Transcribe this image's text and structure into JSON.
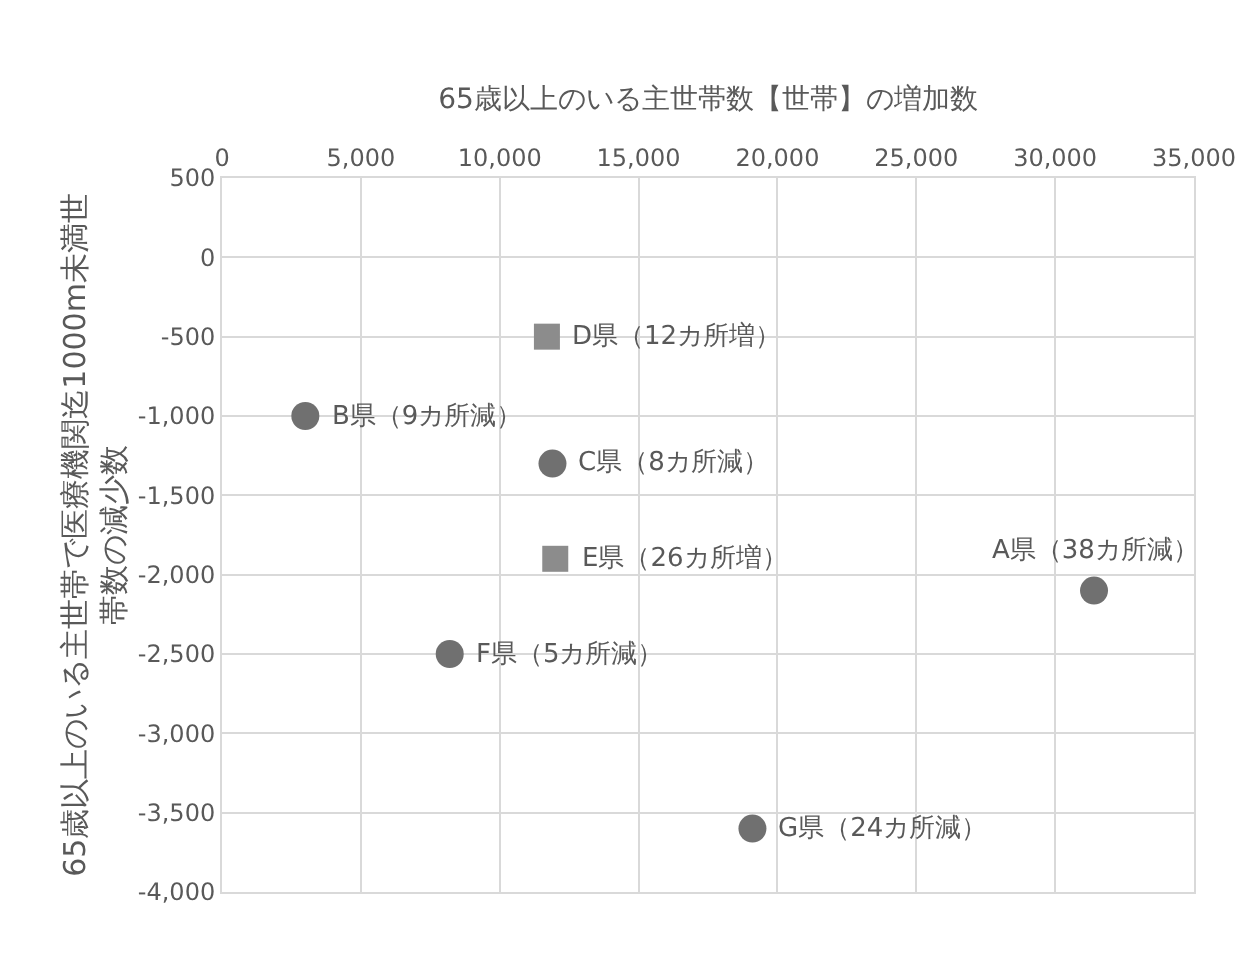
{
  "chart_data": {
    "type": "scatter",
    "xlabel": "65歳以上のいる主世帯数【世帯】の増加数",
    "ylabel": "65歳以上のいる主世帯で医療機関迄1000m未満世帯数の減少数",
    "xlim": [
      0,
      35000
    ],
    "xticks": [
      0,
      {
        "value": 5000,
        "label": "5,000"
      },
      {
        "value": 10000,
        "label": "10,000"
      },
      {
        "value": 15000,
        "label": "15,000"
      },
      {
        "value": 20000,
        "label": "20,000"
      },
      {
        "value": 25000,
        "label": "25,000"
      },
      {
        "value": 30000,
        "label": "30,000"
      },
      {
        "value": 35000,
        "label": "35,000"
      }
    ],
    "ylim": [
      -4000,
      500
    ],
    "yticks": [
      500,
      0,
      -500,
      {
        "value": -1000,
        "label": "-1,000"
      },
      {
        "value": -1500,
        "label": "-1,500"
      },
      {
        "value": -2000,
        "label": "-2,000"
      },
      {
        "value": -2500,
        "label": "-2,500"
      },
      {
        "value": -3000,
        "label": "-3,000"
      },
      {
        "value": -3500,
        "label": "-3,500"
      },
      {
        "value": -4000,
        "label": "-4,000"
      }
    ],
    "series": [
      {
        "color": "#707070",
        "marker": "circle",
        "x": [
          31400,
          3000,
          11900,
          8200,
          19100
        ],
        "values": [
          -2100,
          -1000,
          -1300,
          -2500,
          -3600
        ]
      },
      {
        "color": "#8c8c8c",
        "marker": "square",
        "x": [
          11700,
          12000
        ],
        "values": [
          -500,
          -1900
        ]
      }
    ],
    "annotations": [
      {
        "text": "A県（38カ所減）",
        "x": 31400,
        "y": -2100
      },
      {
        "text": "B県（9カ所減）",
        "x": 3000,
        "y": -1000
      },
      {
        "text": "C県（8カ所減）",
        "x": 11900,
        "y": -1300
      },
      {
        "text": "D県（12カ所増）",
        "x": 11700,
        "y": -500
      },
      {
        "text": "E県（26カ所増）",
        "x": 12000,
        "y": -1900
      },
      {
        "text": "F県（5カ所減）",
        "x": 8200,
        "y": -2500
      },
      {
        "text": "G県（24カ所減）",
        "x": 19100,
        "y": -3600
      }
    ],
    "grid": true
  }
}
